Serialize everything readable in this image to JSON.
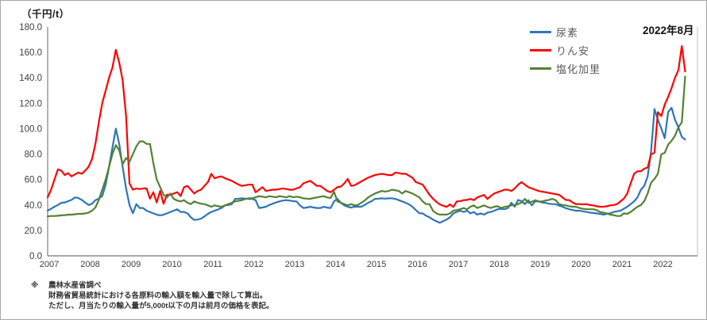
{
  "chart": {
    "unit_label": "（千円/t）",
    "annotation": "2022年8月"
  },
  "footnote": {
    "marker": "※",
    "line1": "農林水産省調べ",
    "line2": "財務省貿易統計における各原料の輸入額を輸入量で除して算出。",
    "line3": "ただし、月当たりの輸入量が5,000t以下の月は前月の価格を表記。"
  },
  "chart_data": {
    "type": "line",
    "title": "",
    "ylabel": "（千円/t）",
    "xlabel": "",
    "ylim": [
      0,
      180
    ],
    "grid": false,
    "legend_position": "top-right",
    "y_tick_labels": [
      "180.0",
      "160.0",
      "140.0",
      "120.0",
      "100.0",
      "80.0",
      "60.0",
      "40.0",
      "20.0",
      "0.0"
    ],
    "x_tick_labels": [
      "2007",
      "2008",
      "2009",
      "2010",
      "2011",
      "2012",
      "2013",
      "2014",
      "2015",
      "2016",
      "2017",
      "2018",
      "2019",
      "2020",
      "2021",
      "2022"
    ],
    "x_unit": "monthly from 2007-01 to 2022-08",
    "series": [
      {
        "name": "尿素",
        "color": "#2e75b6",
        "values": [
          35.5,
          37,
          38.6,
          40,
          41.7,
          42,
          43,
          44,
          45.9,
          45.5,
          44,
          42,
          40,
          41,
          43.8,
          45,
          47,
          56,
          70,
          85,
          100,
          88,
          70,
          53,
          40,
          33.5,
          40.7,
          37.6,
          37.6,
          35.5,
          34.5,
          33.4,
          32.4,
          31.8,
          32.4,
          33.4,
          34.5,
          35.5,
          36.6,
          34.5,
          34.5,
          33.4,
          30.3,
          28.2,
          28.5,
          29.3,
          31,
          33,
          34.5,
          35.5,
          36.5,
          37.6,
          39.7,
          40,
          40.7,
          44.8,
          45,
          45.2,
          45,
          44.8,
          44.8,
          43.8,
          37.6,
          38,
          38.6,
          40,
          41,
          42,
          42.8,
          43.5,
          43.8,
          43.5,
          43,
          42.8,
          39.7,
          37.6,
          38,
          38.6,
          38,
          37.6,
          37.6,
          38.6,
          37.9,
          37.6,
          42.8,
          44.8,
          41.7,
          39.7,
          38.6,
          37.9,
          38.6,
          38.6,
          38.6,
          40,
          41.7,
          43,
          44.8,
          45,
          45.2,
          45,
          45.2,
          45.2,
          44.8,
          43.8,
          42.8,
          41.7,
          40.5,
          38.6,
          36,
          33.5,
          33.4,
          31.5,
          30.3,
          28.5,
          27.2,
          26,
          27.2,
          28.5,
          30.3,
          33.4,
          34.5,
          35.5,
          34.5,
          35.5,
          33.4,
          34.5,
          32.4,
          33.4,
          32.4,
          34,
          34.5,
          35.5,
          36.6,
          37,
          36.6,
          37.6,
          41.7,
          38.6,
          44,
          43,
          40.7,
          43.8,
          39.7,
          42.8,
          42.8,
          42,
          41.7,
          41,
          40.7,
          40.7,
          39.5,
          38.6,
          37.5,
          36.6,
          36,
          35.5,
          35.5,
          35,
          34.5,
          34,
          33.7,
          33.4,
          33,
          32.4,
          33,
          33.4,
          34.5,
          35,
          35.5,
          37,
          38.6,
          40.7,
          42.8,
          46,
          52,
          55,
          62.5,
          82,
          115.5,
          107,
          100,
          92.5,
          113,
          116.5,
          107,
          101,
          93.5,
          91.5
        ]
      },
      {
        "name": "りん安",
        "color": "#ff0000",
        "values": [
          46,
          52,
          60,
          68,
          67,
          63.5,
          65,
          62.5,
          64,
          65.5,
          64.5,
          67,
          70,
          76,
          88,
          105,
          120,
          130,
          140,
          148,
          162,
          152,
          138,
          110,
          57,
          52,
          53,
          52.5,
          53,
          53,
          45,
          50,
          42,
          51,
          41,
          48,
          48,
          49,
          50,
          47,
          54,
          55,
          52,
          49,
          51,
          52,
          55,
          58,
          64.5,
          61,
          62,
          62.5,
          61,
          60,
          59,
          57.5,
          56,
          55,
          55.5,
          56,
          56,
          50,
          52,
          54,
          51,
          51.5,
          52,
          52,
          52.5,
          53,
          52.5,
          52,
          52,
          53,
          54,
          57,
          58,
          59,
          57,
          55,
          55,
          53,
          51,
          50,
          52,
          54,
          54.5,
          57,
          60.5,
          55,
          55.5,
          57,
          58.5,
          60,
          61.5,
          62.5,
          63.5,
          64,
          64.5,
          64,
          63.5,
          63.5,
          65.5,
          65,
          64.5,
          64.5,
          63,
          61.5,
          58,
          57,
          56,
          52,
          48,
          45,
          42.5,
          40.5,
          39.5,
          38.5,
          40.5,
          38.5,
          42.8,
          43,
          43.8,
          44,
          44.8,
          43.8,
          45.9,
          46.9,
          47.9,
          44.8,
          47,
          49,
          50,
          51,
          52,
          52,
          51,
          53,
          56,
          58,
          56,
          54,
          53,
          52,
          51,
          50.5,
          50,
          49.5,
          49,
          48.5,
          48,
          46,
          44,
          43.8,
          42,
          40.7,
          40.7,
          40.5,
          40.7,
          40,
          39.7,
          39,
          38.6,
          38.6,
          39,
          39.7,
          40,
          40.7,
          42.8,
          45,
          49,
          57,
          64.5,
          66.5,
          66.5,
          68.5,
          69.5,
          80,
          81,
          113,
          110,
          119,
          125,
          132,
          140,
          146,
          165,
          145
        ]
      },
      {
        "name": "塩化加里",
        "color": "#538135",
        "values": [
          31.1,
          31.3,
          31.3,
          31.5,
          31.8,
          32,
          32.4,
          32.4,
          32.7,
          33,
          33,
          33.4,
          34,
          35.5,
          38,
          44,
          52,
          60,
          70,
          80,
          87,
          83,
          72,
          77,
          74,
          80,
          86,
          90,
          90,
          88,
          88,
          73,
          60,
          54,
          48,
          46,
          49,
          44.8,
          43.5,
          42.8,
          43.8,
          41.7,
          40.7,
          42.8,
          41.7,
          41,
          40.7,
          39.7,
          38.6,
          39.7,
          39,
          38.6,
          39.7,
          40.7,
          41.7,
          42.8,
          43.3,
          43.8,
          44.8,
          45.2,
          45.2,
          46,
          46.9,
          46.5,
          46,
          46.9,
          46.5,
          46,
          46.9,
          46.5,
          46,
          46.9,
          46,
          46.5,
          46,
          45.2,
          45,
          44.8,
          45.5,
          45.9,
          46.5,
          46.9,
          45.9,
          45.5,
          50.4,
          42.8,
          41.7,
          40.7,
          39.7,
          40.7,
          39.7,
          40,
          41.7,
          43.5,
          45.9,
          47.5,
          49,
          50,
          51,
          50.5,
          51,
          52,
          51.5,
          51,
          49,
          51,
          50,
          49,
          47.5,
          46,
          42.8,
          40.7,
          40.7,
          35.5,
          33.4,
          32.4,
          32.5,
          32.4,
          33.4,
          35.5,
          36,
          36.6,
          37.6,
          36.6,
          38.6,
          39.7,
          37.6,
          38.6,
          39.7,
          38.5,
          37.6,
          38.6,
          39,
          37.6,
          38.5,
          39,
          39.7,
          40,
          40.7,
          42,
          44.8,
          41.7,
          42.5,
          43.8,
          42.8,
          42.8,
          43.5,
          44,
          44.8,
          43.8,
          40.7,
          40,
          39.7,
          39,
          38.6,
          38.6,
          37.6,
          37,
          36.6,
          36.6,
          36.6,
          36,
          34.5,
          34,
          33.4,
          32.4,
          32,
          31.3,
          31.3,
          33.4,
          33,
          34.5,
          36.6,
          38.6,
          40,
          43,
          49,
          57.5,
          60.5,
          64.5,
          80,
          81,
          87.5,
          90.5,
          94.5,
          101,
          105,
          141
        ]
      }
    ]
  }
}
